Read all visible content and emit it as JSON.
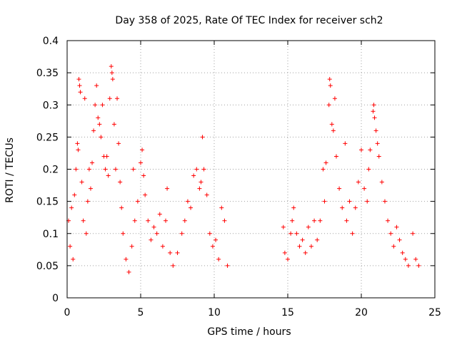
{
  "chart_data": {
    "type": "scatter",
    "title": "Day 358 of 2025, Rate Of TEC Index for receiver sch2",
    "xlabel": "GPS time / hours",
    "ylabel": "ROTI / TECUs",
    "xlim": [
      0,
      25
    ],
    "ylim": [
      0,
      0.4
    ],
    "xticks": [
      0,
      5,
      10,
      15,
      20,
      25
    ],
    "yticks": [
      0,
      0.05,
      0.1,
      0.15,
      0.2,
      0.25,
      0.3,
      0.35,
      0.4
    ],
    "xtick_labels": [
      "0",
      "5",
      "10",
      "15",
      "20",
      "25"
    ],
    "ytick_labels": [
      "0",
      "0.05",
      "0.1",
      "0.15",
      "0.2",
      "0.25",
      "0.3",
      "0.35",
      "0.4"
    ],
    "grid": true,
    "marker": "plus",
    "color": "#ff0000",
    "series": [
      {
        "name": "",
        "points": [
          [
            0.1,
            0.12
          ],
          [
            0.2,
            0.08
          ],
          [
            0.3,
            0.14
          ],
          [
            0.4,
            0.06
          ],
          [
            0.5,
            0.16
          ],
          [
            0.6,
            0.2
          ],
          [
            0.7,
            0.24
          ],
          [
            0.75,
            0.23
          ],
          [
            0.8,
            0.34
          ],
          [
            0.85,
            0.33
          ],
          [
            0.9,
            0.32
          ],
          [
            1.0,
            0.18
          ],
          [
            1.1,
            0.12
          ],
          [
            1.2,
            0.31
          ],
          [
            1.3,
            0.1
          ],
          [
            1.4,
            0.15
          ],
          [
            1.5,
            0.2
          ],
          [
            1.6,
            0.17
          ],
          [
            1.7,
            0.21
          ],
          [
            1.8,
            0.26
          ],
          [
            1.9,
            0.3
          ],
          [
            2.0,
            0.33
          ],
          [
            2.1,
            0.28
          ],
          [
            2.2,
            0.27
          ],
          [
            2.3,
            0.25
          ],
          [
            2.4,
            0.3
          ],
          [
            2.5,
            0.22
          ],
          [
            2.6,
            0.2
          ],
          [
            2.7,
            0.22
          ],
          [
            2.8,
            0.19
          ],
          [
            2.9,
            0.31
          ],
          [
            3.0,
            0.36
          ],
          [
            3.05,
            0.35
          ],
          [
            3.1,
            0.34
          ],
          [
            3.2,
            0.27
          ],
          [
            3.3,
            0.2
          ],
          [
            3.4,
            0.31
          ],
          [
            3.5,
            0.24
          ],
          [
            3.6,
            0.18
          ],
          [
            3.7,
            0.14
          ],
          [
            3.8,
            0.1
          ],
          [
            4.0,
            0.06
          ],
          [
            4.2,
            0.04
          ],
          [
            4.4,
            0.08
          ],
          [
            4.5,
            0.2
          ],
          [
            4.6,
            0.12
          ],
          [
            4.8,
            0.15
          ],
          [
            5.0,
            0.21
          ],
          [
            5.1,
            0.23
          ],
          [
            5.2,
            0.19
          ],
          [
            5.3,
            0.16
          ],
          [
            5.5,
            0.12
          ],
          [
            5.7,
            0.09
          ],
          [
            5.9,
            0.11
          ],
          [
            6.1,
            0.1
          ],
          [
            6.3,
            0.13
          ],
          [
            6.5,
            0.08
          ],
          [
            6.7,
            0.12
          ],
          [
            6.8,
            0.17
          ],
          [
            7.0,
            0.07
          ],
          [
            7.2,
            0.05
          ],
          [
            7.5,
            0.07
          ],
          [
            7.8,
            0.1
          ],
          [
            8.0,
            0.12
          ],
          [
            8.2,
            0.15
          ],
          [
            8.4,
            0.14
          ],
          [
            8.6,
            0.19
          ],
          [
            8.8,
            0.2
          ],
          [
            9.0,
            0.17
          ],
          [
            9.1,
            0.18
          ],
          [
            9.2,
            0.25
          ],
          [
            9.3,
            0.2
          ],
          [
            9.5,
            0.16
          ],
          [
            9.7,
            0.1
          ],
          [
            9.9,
            0.08
          ],
          [
            10.1,
            0.09
          ],
          [
            10.3,
            0.06
          ],
          [
            10.5,
            0.14
          ],
          [
            10.7,
            0.12
          ],
          [
            10.9,
            0.05
          ],
          [
            14.7,
            0.11
          ],
          [
            14.8,
            0.07
          ],
          [
            15.0,
            0.06
          ],
          [
            15.2,
            0.1
          ],
          [
            15.3,
            0.12
          ],
          [
            15.4,
            0.14
          ],
          [
            15.6,
            0.1
          ],
          [
            15.8,
            0.08
          ],
          [
            16.0,
            0.09
          ],
          [
            16.2,
            0.07
          ],
          [
            16.4,
            0.11
          ],
          [
            16.6,
            0.08
          ],
          [
            16.8,
            0.12
          ],
          [
            17.0,
            0.09
          ],
          [
            17.2,
            0.12
          ],
          [
            17.4,
            0.2
          ],
          [
            17.5,
            0.15
          ],
          [
            17.6,
            0.21
          ],
          [
            17.8,
            0.3
          ],
          [
            17.85,
            0.34
          ],
          [
            17.9,
            0.33
          ],
          [
            18.0,
            0.27
          ],
          [
            18.1,
            0.26
          ],
          [
            18.2,
            0.31
          ],
          [
            18.3,
            0.22
          ],
          [
            18.5,
            0.17
          ],
          [
            18.7,
            0.14
          ],
          [
            18.9,
            0.24
          ],
          [
            19.0,
            0.12
          ],
          [
            19.2,
            0.15
          ],
          [
            19.4,
            0.1
          ],
          [
            19.6,
            0.14
          ],
          [
            19.8,
            0.18
          ],
          [
            20.0,
            0.23
          ],
          [
            20.2,
            0.17
          ],
          [
            20.4,
            0.15
          ],
          [
            20.5,
            0.2
          ],
          [
            20.6,
            0.23
          ],
          [
            20.8,
            0.29
          ],
          [
            20.85,
            0.3
          ],
          [
            20.9,
            0.28
          ],
          [
            21.0,
            0.26
          ],
          [
            21.1,
            0.24
          ],
          [
            21.2,
            0.22
          ],
          [
            21.4,
            0.18
          ],
          [
            21.6,
            0.15
          ],
          [
            21.8,
            0.12
          ],
          [
            22.0,
            0.1
          ],
          [
            22.2,
            0.08
          ],
          [
            22.4,
            0.11
          ],
          [
            22.6,
            0.09
          ],
          [
            22.8,
            0.07
          ],
          [
            23.0,
            0.06
          ],
          [
            23.2,
            0.05
          ],
          [
            23.5,
            0.1
          ],
          [
            23.7,
            0.06
          ],
          [
            23.9,
            0.05
          ]
        ]
      }
    ]
  }
}
